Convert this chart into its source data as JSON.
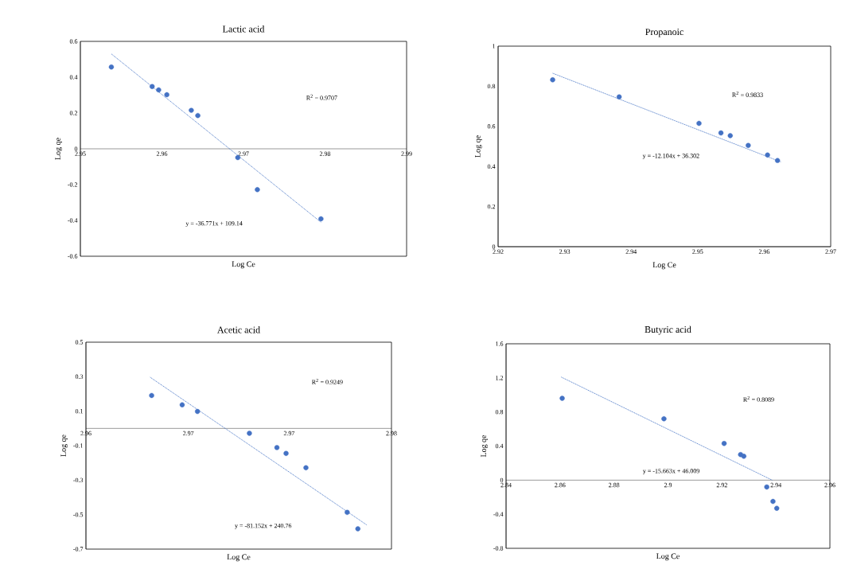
{
  "chart_data": [
    {
      "type": "scatter",
      "title": "Lactic  acid",
      "xlabel": "Log Ce",
      "ylabel": "Log qe",
      "annotations": [
        "R$^{2}$ = 0.9707",
        "y = -36.771x + 109.14"
      ],
      "xlim": [
        2.95,
        2.99
      ],
      "ylim": [
        -0.6,
        0.6
      ],
      "xticks": [
        2.95,
        2.96,
        2.97,
        2.98,
        2.99
      ],
      "yticks": [
        -0.6,
        -0.4,
        -0.2,
        0,
        0.2,
        0.4,
        0.6
      ],
      "series": [
        {
          "type": "scatter",
          "color": "#4472c4",
          "marker": "circle",
          "x": [
            2.9538,
            2.9588,
            2.9596,
            2.9606,
            2.9636,
            2.9644,
            2.9693,
            2.9717,
            2.9795
          ],
          "values": [
            0.457,
            0.348,
            0.329,
            0.302,
            0.215,
            0.186,
            -0.049,
            -0.228,
            -0.391
          ]
        },
        {
          "type": "line",
          "color": "#4472c4",
          "marker": "none",
          "line_style": "dotted",
          "x": [
            2.9538,
            2.9795
          ],
          "values": [
            0.53,
            -0.41
          ]
        }
      ]
    },
    {
      "type": "scatter",
      "title": "Propanoic",
      "xlabel": "Log Ce",
      "ylabel": "Log qe",
      "annotations": [
        "R$^{2}$ = 0.9833",
        "y = -12.104x + 36.302"
      ],
      "xlim": [
        2.92,
        2.97
      ],
      "ylim": [
        0,
        1
      ],
      "xticks": [
        2.92,
        2.93,
        2.94,
        2.95,
        2.96,
        2.97
      ],
      "yticks": [
        0,
        0.2,
        0.4,
        0.6,
        0.8,
        1
      ],
      "series": [
        {
          "type": "scatter",
          "color": "#4472c4",
          "marker": "circle",
          "x": [
            2.9282,
            2.9382,
            2.9502,
            2.9535,
            2.9549,
            2.9576,
            2.9605,
            2.962
          ],
          "values": [
            0.832,
            0.747,
            0.615,
            0.567,
            0.554,
            0.505,
            0.457,
            0.43
          ]
        },
        {
          "type": "line",
          "color": "#4472c4",
          "marker": "none",
          "line_style": "dotted",
          "x": [
            2.9282,
            2.9625
          ],
          "values": [
            0.865,
            0.423
          ]
        }
      ]
    },
    {
      "type": "scatter",
      "title": "Acetic  acid",
      "xlabel": "Log Ce",
      "ylabel": "Log qe",
      "annotations": [
        "R$^{2}$ = 0.9249",
        "y = -81.152x + 240.76"
      ],
      "xlim": [
        2.96,
        2.98
      ],
      "ylim": [
        -0.7,
        0.5
      ],
      "xticks": [
        2.96,
        {
          "value": 2.9667,
          "label": "2.97"
        },
        {
          "value": 2.9733,
          "label": "2.97"
        },
        2.98
      ],
      "yticks": [
        -0.7,
        -0.5,
        -0.3,
        -0.1,
        0.1,
        0.3,
        0.5
      ],
      "series": [
        {
          "type": "scatter",
          "color": "#4472c4",
          "marker": "circle",
          "x": [
            2.9643,
            2.9663,
            2.9673,
            2.9707,
            2.9725,
            2.9731,
            2.9744,
            2.9771,
            2.9778
          ],
          "values": [
            0.191,
            0.137,
            0.098,
            -0.028,
            -0.111,
            -0.145,
            -0.228,
            -0.487,
            -0.582
          ]
        },
        {
          "type": "line",
          "color": "#4472c4",
          "marker": "none",
          "line_style": "dotted",
          "x": [
            2.9642,
            2.9784
          ],
          "values": [
            0.297,
            -0.561
          ]
        }
      ]
    },
    {
      "type": "scatter",
      "title": "Butyric  acid",
      "xlabel": "Log Ce",
      "ylabel": "Log qe",
      "annotations": [
        "R$^{2}$ = 0.8089",
        "y = -15.663x + 46.009"
      ],
      "xlim": [
        2.84,
        2.96
      ],
      "ylim": [
        -0.8,
        1.6
      ],
      "xticks": [
        2.84,
        2.86,
        2.88,
        2.9,
        2.92,
        2.94,
        2.96
      ],
      "yticks": [
        -0.8,
        -0.4,
        0,
        0.4,
        0.8,
        1.2,
        1.6
      ],
      "series": [
        {
          "type": "scatter",
          "color": "#4472c4",
          "marker": "circle",
          "x": [
            2.8608,
            2.8985,
            2.9208,
            2.9269,
            2.9281,
            2.9366,
            2.9389,
            2.9403
          ],
          "values": [
            0.96,
            0.72,
            0.43,
            0.3,
            0.28,
            -0.08,
            -0.25,
            -0.33
          ]
        },
        {
          "type": "line",
          "color": "#4472c4",
          "marker": "none",
          "line_style": "dotted",
          "x": [
            2.8604,
            2.9386
          ],
          "values": [
            1.21,
            0.0
          ]
        }
      ]
    }
  ]
}
